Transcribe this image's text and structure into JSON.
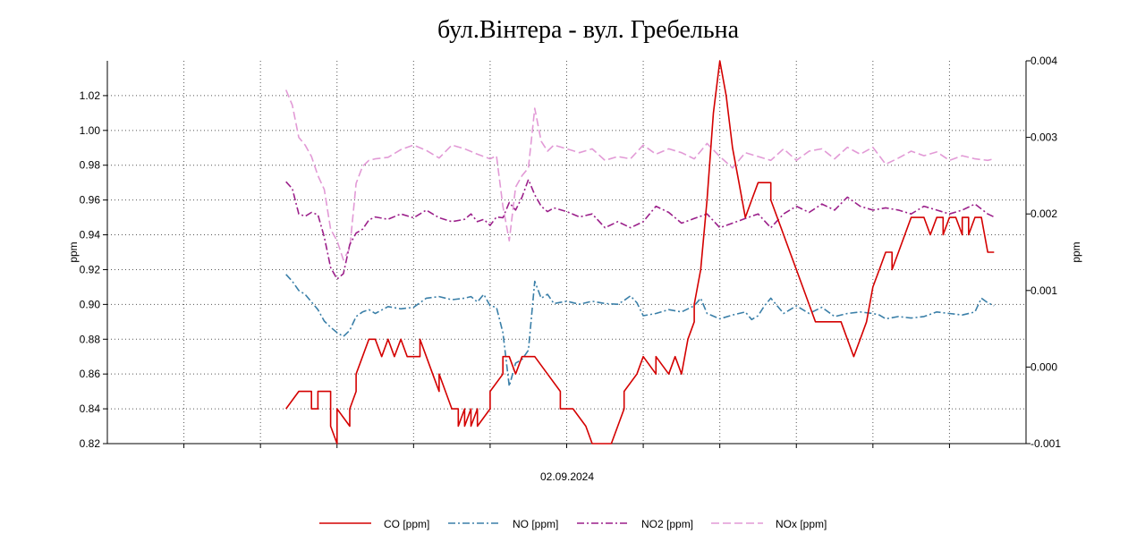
{
  "chart_data": {
    "type": "line",
    "title": "бул.Вінтера - вул. Гребельна",
    "xlabel": "02.09.2024",
    "ylabel_left": "ppm",
    "ylabel_right": "ppm",
    "ylim_left": [
      0.82,
      1.04
    ],
    "ylim_right": [
      -0.001,
      0.004
    ],
    "yticks_left": [
      "0.82",
      "0.84",
      "0.86",
      "0.88",
      "0.90",
      "0.92",
      "0.94",
      "0.96",
      "0.98",
      "1.00",
      "1.02"
    ],
    "yticks_right": [
      "-0.001",
      "0.000",
      "0.001",
      "0.002",
      "0.003",
      "0.004"
    ],
    "grid": true,
    "legend_position": "bottom",
    "x_index_range": [
      0,
      144
    ],
    "series": [
      {
        "name": "CO [ppm]",
        "axis": "left",
        "color": "#d40000",
        "dash": "",
        "x": [
          28,
          30,
          30,
          32,
          32,
          33,
          33,
          35,
          35,
          36,
          36,
          38,
          38,
          39,
          39,
          40,
          41,
          42,
          43,
          44,
          45,
          46,
          47,
          49,
          49,
          50,
          51,
          52,
          52,
          53,
          54,
          55,
          55,
          56,
          56,
          57,
          57,
          58,
          58,
          60,
          60,
          62,
          62,
          63,
          64,
          65,
          66,
          67,
          69,
          71,
          71,
          72,
          73,
          75,
          76,
          77,
          77,
          79,
          80,
          81,
          81,
          83,
          84,
          86,
          86,
          88,
          89,
          90,
          91,
          92,
          92,
          93,
          94,
          95,
          96,
          97,
          98,
          99,
          100,
          101,
          102,
          104,
          104,
          105,
          106,
          107,
          108,
          109,
          110,
          111,
          112,
          113,
          113,
          114,
          115,
          116,
          117,
          118,
          119,
          120,
          121,
          122,
          123,
          123,
          124,
          125,
          126,
          127,
          128,
          129,
          130,
          131,
          131,
          132,
          133,
          134,
          134,
          135,
          135,
          136,
          137,
          138,
          139
        ],
        "values": [
          0.84,
          0.85,
          0.85,
          0.85,
          0.84,
          0.84,
          0.85,
          0.85,
          0.83,
          0.82,
          0.84,
          0.83,
          0.84,
          0.85,
          0.86,
          0.87,
          0.88,
          0.88,
          0.87,
          0.88,
          0.87,
          0.88,
          0.87,
          0.87,
          0.88,
          0.87,
          0.86,
          0.85,
          0.86,
          0.85,
          0.84,
          0.84,
          0.83,
          0.84,
          0.83,
          0.84,
          0.83,
          0.84,
          0.83,
          0.84,
          0.85,
          0.86,
          0.87,
          0.87,
          0.86,
          0.87,
          0.87,
          0.87,
          0.86,
          0.85,
          0.84,
          0.84,
          0.84,
          0.83,
          0.82,
          0.82,
          0.81,
          0.82,
          0.83,
          0.84,
          0.85,
          0.86,
          0.87,
          0.86,
          0.87,
          0.86,
          0.87,
          0.86,
          0.88,
          0.89,
          0.9,
          0.92,
          0.96,
          1.01,
          1.04,
          1.02,
          0.99,
          0.97,
          0.95,
          0.96,
          0.97,
          0.97,
          0.96,
          0.95,
          0.94,
          0.93,
          0.92,
          0.91,
          0.9,
          0.89,
          0.89,
          0.89,
          0.89,
          0.89,
          0.89,
          0.88,
          0.87,
          0.88,
          0.89,
          0.91,
          0.92,
          0.93,
          0.93,
          0.92,
          0.93,
          0.94,
          0.95,
          0.95,
          0.95,
          0.94,
          0.95,
          0.95,
          0.94,
          0.95,
          0.95,
          0.94,
          0.95,
          0.95,
          0.94,
          0.95,
          0.95,
          0.93,
          0.93
        ]
      },
      {
        "name": "NO [ppm]",
        "axis": "right",
        "color": "#3a7fa8",
        "dash": "8,3,2,3",
        "x": [
          28,
          29,
          30,
          31,
          32,
          33,
          34,
          35,
          36,
          37,
          38,
          39,
          40,
          41,
          42,
          44,
          46,
          48,
          50,
          52,
          54,
          56,
          57,
          58,
          59,
          60,
          61,
          62,
          63,
          64,
          65,
          66,
          67,
          68,
          69,
          70,
          72,
          74,
          76,
          78,
          80,
          81,
          82,
          83,
          84,
          86,
          88,
          90,
          92,
          93,
          94,
          96,
          98,
          100,
          101,
          102,
          103,
          104,
          106,
          108,
          110,
          112,
          114,
          116,
          118,
          120,
          121,
          122,
          124,
          126,
          128,
          130,
          132,
          134,
          136,
          137,
          138,
          139
        ],
        "values": [
          0.00121,
          0.00112,
          0.001,
          0.00095,
          0.00085,
          0.00075,
          0.0006,
          0.00052,
          0.00045,
          0.0004,
          0.00048,
          0.00066,
          0.00072,
          0.00075,
          0.0007,
          0.00079,
          0.00076,
          0.00078,
          0.0009,
          0.00092,
          0.00088,
          0.0009,
          0.00092,
          0.00085,
          0.00095,
          0.0008,
          0.00078,
          0.00045,
          -0.00025,
          5e-05,
          0.0001,
          0.00022,
          0.00112,
          0.0009,
          0.00095,
          0.00083,
          0.00086,
          0.00082,
          0.00086,
          0.00083,
          0.00082,
          0.00087,
          0.00093,
          0.00084,
          0.00067,
          0.0007,
          0.00075,
          0.00072,
          0.0008,
          0.0009,
          0.0007,
          0.00063,
          0.00068,
          0.00072,
          0.00062,
          0.00067,
          0.0008,
          0.0009,
          0.0007,
          0.0008,
          0.0007,
          0.00078,
          0.00066,
          0.0007,
          0.00072,
          0.0007,
          0.00068,
          0.00063,
          0.00066,
          0.00064,
          0.00066,
          0.00072,
          0.0007,
          0.00068,
          0.00072,
          0.0009,
          0.00084,
          0.0008
        ]
      },
      {
        "name": "NO2 [ppm]",
        "axis": "right",
        "color": "#9b1f8a",
        "dash": "8,3,2,3",
        "x": [
          28,
          29,
          30,
          31,
          32,
          33,
          34,
          35,
          36,
          37,
          38,
          39,
          40,
          41,
          42,
          44,
          46,
          48,
          50,
          52,
          54,
          56,
          57,
          58,
          59,
          60,
          61,
          62,
          63,
          64,
          65,
          66,
          67,
          68,
          69,
          70,
          72,
          74,
          76,
          78,
          80,
          82,
          84,
          86,
          88,
          90,
          92,
          94,
          96,
          98,
          100,
          102,
          104,
          106,
          108,
          110,
          112,
          114,
          116,
          118,
          120,
          122,
          124,
          126,
          128,
          130,
          132,
          134,
          136,
          138,
          139
        ],
        "values": [
          0.00242,
          0.00233,
          0.002,
          0.00197,
          0.00202,
          0.00199,
          0.0017,
          0.0013,
          0.00115,
          0.00122,
          0.0016,
          0.00175,
          0.0018,
          0.00192,
          0.00196,
          0.00193,
          0.002,
          0.00195,
          0.00205,
          0.00195,
          0.0019,
          0.00193,
          0.002,
          0.0019,
          0.00193,
          0.00185,
          0.00196,
          0.00195,
          0.00215,
          0.00205,
          0.00222,
          0.00245,
          0.00225,
          0.0021,
          0.00203,
          0.00208,
          0.00203,
          0.00196,
          0.002,
          0.00182,
          0.0019,
          0.00182,
          0.0019,
          0.0021,
          0.00202,
          0.00188,
          0.00194,
          0.002,
          0.00182,
          0.00188,
          0.00194,
          0.002,
          0.00182,
          0.002,
          0.0021,
          0.00202,
          0.00213,
          0.00205,
          0.00222,
          0.0021,
          0.00205,
          0.00208,
          0.00205,
          0.002,
          0.0021,
          0.00205,
          0.002,
          0.00205,
          0.00213,
          0.002,
          0.00196
        ]
      },
      {
        "name": "NOx [ppm]",
        "axis": "right",
        "color": "#e29ad6",
        "dash": "9,4",
        "x": [
          28,
          29,
          30,
          31,
          32,
          33,
          34,
          35,
          36,
          37,
          38,
          39,
          40,
          41,
          42,
          44,
          46,
          48,
          50,
          52,
          54,
          56,
          58,
          60,
          61,
          62,
          63,
          64,
          65,
          66,
          67,
          68,
          69,
          70,
          72,
          74,
          76,
          78,
          80,
          82,
          84,
          86,
          88,
          90,
          92,
          94,
          96,
          98,
          100,
          102,
          104,
          106,
          108,
          110,
          112,
          114,
          116,
          118,
          120,
          122,
          124,
          126,
          128,
          130,
          132,
          134,
          136,
          138,
          139
        ],
        "values": [
          0.00362,
          0.00342,
          0.003,
          0.0029,
          0.00275,
          0.0025,
          0.00232,
          0.0018,
          0.00165,
          0.0014,
          0.00155,
          0.0024,
          0.00262,
          0.0027,
          0.00272,
          0.00274,
          0.00284,
          0.0029,
          0.00283,
          0.00273,
          0.0029,
          0.00285,
          0.00278,
          0.00272,
          0.00276,
          0.0021,
          0.00165,
          0.00235,
          0.0025,
          0.0026,
          0.00338,
          0.00295,
          0.00282,
          0.0029,
          0.00285,
          0.0028,
          0.00285,
          0.0027,
          0.00275,
          0.00272,
          0.0029,
          0.00278,
          0.00285,
          0.0028,
          0.00272,
          0.00292,
          0.00275,
          0.0026,
          0.0028,
          0.00275,
          0.0027,
          0.00285,
          0.0027,
          0.00282,
          0.00285,
          0.00272,
          0.00287,
          0.00278,
          0.00287,
          0.00265,
          0.00273,
          0.00282,
          0.00276,
          0.00281,
          0.0027,
          0.00276,
          0.00272,
          0.0027,
          0.00272
        ]
      }
    ]
  }
}
